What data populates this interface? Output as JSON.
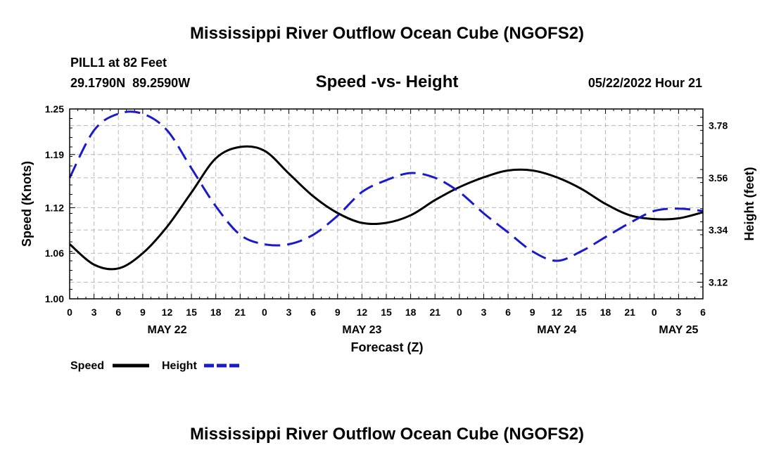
{
  "header": {
    "title": "Mississippi River Outflow Ocean Cube (NGOFS2)",
    "station": "PILL1 at 82 Feet",
    "coords": "29.1790N  89.2590W",
    "subtitle": "Speed -vs- Height",
    "datetime": "05/22/2022 Hour 21"
  },
  "footer": {
    "title": "Mississippi River Outflow Ocean Cube (NGOFS2)"
  },
  "chart_data": {
    "type": "line",
    "title": "Speed -vs- Height",
    "xlabel": "Forecast (Z)",
    "ylabel_left": "Speed (Knots)",
    "ylabel_right": "Height (feet)",
    "x_hours": [
      0,
      78
    ],
    "ylim_left": [
      1.0,
      1.25
    ],
    "ylim_right": [
      3.05,
      3.85
    ],
    "hour_tick_labels": [
      "0",
      "3",
      "6",
      "9",
      "12",
      "15",
      "18",
      "21",
      "0",
      "3",
      "6",
      "9",
      "12",
      "15",
      "18",
      "21",
      "0",
      "3",
      "6",
      "9",
      "12",
      "15",
      "18",
      "21",
      "0",
      "3",
      "6"
    ],
    "day_labels": [
      {
        "label": "MAY 22",
        "hour": 12
      },
      {
        "label": "MAY 23",
        "hour": 36
      },
      {
        "label": "MAY 24",
        "hour": 60
      },
      {
        "label": "MAY 25",
        "hour": 75
      }
    ],
    "left_ticks": [
      "1.00",
      "1.06",
      "1.12",
      "1.19",
      "1.25"
    ],
    "right_ticks": [
      "3.12",
      "3.34",
      "3.56",
      "3.78"
    ],
    "legend": [
      {
        "name": "Speed",
        "color": "#000000",
        "dash": "solid"
      },
      {
        "name": "Height",
        "color": "#1a1acc",
        "dash": "dashed"
      }
    ],
    "series": [
      {
        "name": "Speed",
        "axis": "left",
        "color": "#000000",
        "x": [
          0,
          3,
          6,
          9,
          12,
          15,
          18,
          21,
          24,
          27,
          30,
          33,
          36,
          39,
          42,
          45,
          48,
          51,
          54,
          57,
          60,
          63,
          66,
          69,
          72,
          75,
          78
        ],
        "y": [
          1.072,
          1.045,
          1.04,
          1.06,
          1.095,
          1.14,
          1.185,
          1.2,
          1.195,
          1.165,
          1.135,
          1.113,
          1.1,
          1.1,
          1.11,
          1.13,
          1.147,
          1.16,
          1.169,
          1.169,
          1.16,
          1.145,
          1.125,
          1.11,
          1.105,
          1.106,
          1.114
        ]
      },
      {
        "name": "Height",
        "axis": "right",
        "color": "#1a1acc",
        "x": [
          0,
          3,
          6,
          9,
          12,
          15,
          18,
          21,
          24,
          27,
          30,
          33,
          36,
          39,
          42,
          45,
          48,
          51,
          54,
          57,
          60,
          63,
          66,
          69,
          72,
          75,
          78
        ],
        "y": [
          3.56,
          3.76,
          3.83,
          3.83,
          3.76,
          3.6,
          3.44,
          3.32,
          3.28,
          3.28,
          3.32,
          3.4,
          3.5,
          3.55,
          3.58,
          3.56,
          3.5,
          3.41,
          3.33,
          3.25,
          3.21,
          3.25,
          3.31,
          3.37,
          3.42,
          3.43,
          3.42
        ]
      }
    ]
  }
}
